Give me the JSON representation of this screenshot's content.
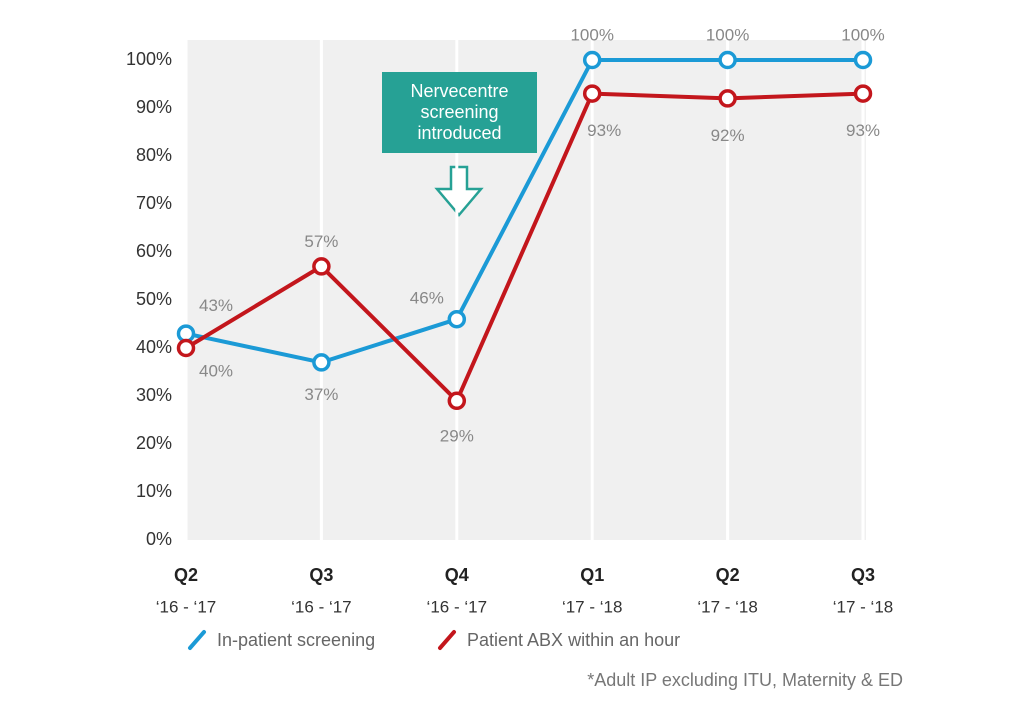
{
  "chart_data": {
    "type": "line",
    "categories": [
      "Q2",
      "Q3",
      "Q4",
      "Q1",
      "Q2",
      "Q3"
    ],
    "category_periods": [
      "‘16 - ‘17",
      "‘16 - ‘17",
      "‘16 - ‘17",
      "‘17 - ‘18",
      "‘17 - ‘18",
      "‘17 - ‘18"
    ],
    "series": [
      {
        "name": "In-patient screening",
        "color": "#1b9ad6",
        "values": [
          43,
          37,
          46,
          100,
          100,
          100
        ],
        "value_labels": [
          "43%",
          "37%",
          "46%",
          "100%",
          "100%",
          "100%"
        ]
      },
      {
        "name": "Patient ABX within an hour",
        "color": "#c3161c",
        "values": [
          40,
          57,
          29,
          93,
          92,
          93
        ],
        "value_labels": [
          "40%",
          "57%",
          "29%",
          "93%",
          "92%",
          "93%"
        ]
      }
    ],
    "ylim": [
      0,
      100
    ],
    "yticks": [
      {
        "value": 0,
        "label": "0%"
      },
      {
        "value": 10,
        "label": "10%"
      },
      {
        "value": 20,
        "label": "20%"
      },
      {
        "value": 30,
        "label": "30%"
      },
      {
        "value": 40,
        "label": "40%"
      },
      {
        "value": 50,
        "label": "50%"
      },
      {
        "value": 60,
        "label": "60%"
      },
      {
        "value": 70,
        "label": "70%"
      },
      {
        "value": 80,
        "label": "80%"
      },
      {
        "value": 90,
        "label": "90%"
      },
      {
        "value": 100,
        "label": "100%"
      }
    ],
    "grid": true,
    "annotation": "Nervecentre screening introduced",
    "footnote": "*Adult IP excluding ITU, Maternity & ED"
  }
}
